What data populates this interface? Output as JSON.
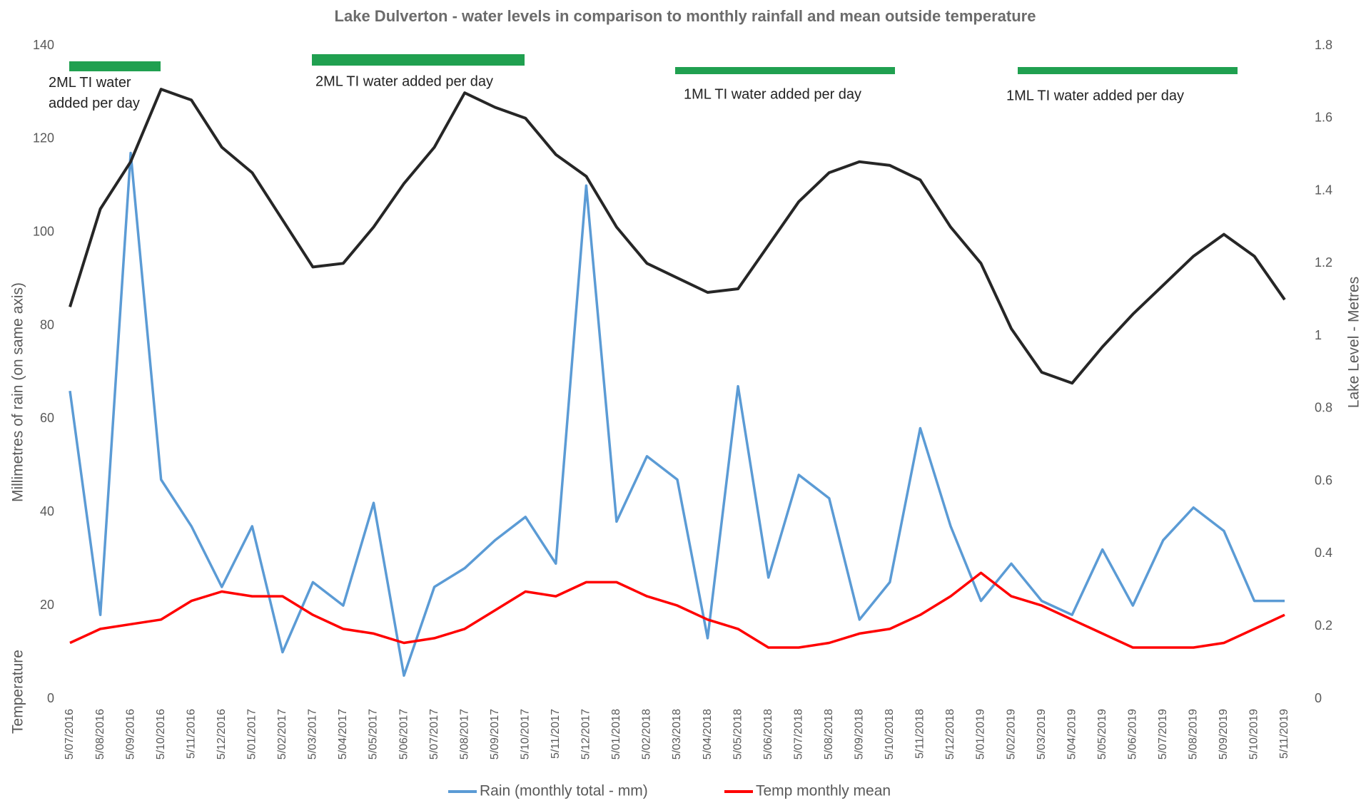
{
  "chart_data": {
    "type": "line",
    "title": "Lake Dulverton - water levels in comparison to monthly rainfall and mean outside temperature",
    "ylabel": "Millimetres of rain  (on same axis)",
    "ylabel2": "Temperature",
    "y2label": "Lake Level  -  Metres",
    "categories": [
      "5/07/2016",
      "5/08/2016",
      "5/09/2016",
      "5/10/2016",
      "5/11/2016",
      "5/12/2016",
      "5/01/2017",
      "5/02/2017",
      "5/03/2017",
      "5/04/2017",
      "5/05/2017",
      "5/06/2017",
      "5/07/2017",
      "5/08/2017",
      "5/09/2017",
      "5/10/2017",
      "5/11/2017",
      "5/12/2017",
      "5/01/2018",
      "5/02/2018",
      "5/03/2018",
      "5/04/2018",
      "5/05/2018",
      "5/06/2018",
      "5/07/2018",
      "5/08/2018",
      "5/09/2018",
      "5/10/2018",
      "5/11/2018",
      "5/12/2018",
      "5/01/2019",
      "5/02/2019",
      "5/03/2019",
      "5/04/2019",
      "5/05/2019",
      "5/06/2019",
      "5/07/2019",
      "5/08/2019",
      "5/09/2019",
      "5/10/2019",
      "5/11/2019"
    ],
    "series": [
      {
        "name": "Rain (monthly total - mm)",
        "color": "#5b9bd5",
        "values": [
          66,
          18,
          117,
          47,
          37,
          24,
          37,
          10,
          25,
          20,
          42,
          5,
          24,
          28,
          34,
          39,
          29,
          110,
          38,
          52,
          47,
          13,
          67,
          26,
          48,
          43,
          17,
          25,
          58,
          37,
          21,
          29,
          21,
          18,
          32,
          20,
          34,
          41,
          36,
          21,
          21
        ]
      },
      {
        "name": "Temp monthly mean",
        "color": "#ff0000",
        "values": [
          12,
          15,
          16,
          17,
          21,
          23,
          22,
          22,
          18,
          15,
          14,
          12,
          13,
          15,
          19,
          23,
          22,
          25,
          25,
          22,
          20,
          17,
          15,
          11,
          11,
          12,
          14,
          15,
          18,
          22,
          27,
          22,
          20,
          17,
          14,
          11,
          11,
          11,
          12,
          15,
          18
        ]
      },
      {
        "name": "Lake Level",
        "color": "#262626",
        "axis": "y2",
        "values": [
          1.08,
          1.35,
          1.48,
          1.68,
          1.65,
          1.52,
          1.45,
          1.32,
          1.19,
          1.2,
          1.3,
          1.42,
          1.52,
          1.67,
          1.63,
          1.6,
          1.5,
          1.44,
          1.3,
          1.2,
          1.16,
          1.12,
          1.13,
          1.25,
          1.37,
          1.45,
          1.48,
          1.47,
          1.43,
          1.3,
          1.2,
          1.02,
          0.9,
          0.87,
          0.97,
          1.06,
          1.14,
          1.22,
          1.28,
          1.22,
          1.1
        ]
      }
    ],
    "ylim": [
      0,
      140
    ],
    "yticks": [
      0,
      20,
      40,
      60,
      80,
      100,
      120,
      140
    ],
    "y2lim": [
      0,
      1.8
    ],
    "y2ticks": [
      0,
      0.2,
      0.4,
      0.6,
      0.8,
      1,
      1.2,
      1.4,
      1.6,
      1.8
    ],
    "annotations": [
      "2ML TI water added per day",
      "2ML TI water added per day",
      "1ML TI water added per day",
      "1ML TI water added per day"
    ],
    "legend": "bottom"
  }
}
